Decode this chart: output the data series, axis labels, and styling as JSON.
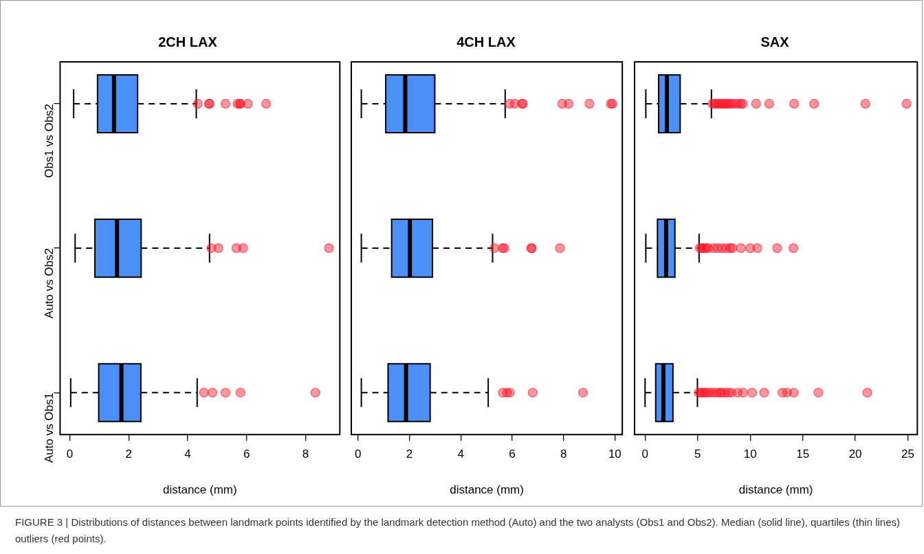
{
  "chart_data": [
    {
      "type": "box",
      "orientation": "horizontal",
      "title": "2CH LAX",
      "xlabel": "distance (mm)",
      "categories": [
        "Obs1 vs Obs2",
        "Auto vs Obs2",
        "Auto vs Obs1"
      ],
      "xlim": [
        -0.33,
        9.16
      ],
      "xticks": [
        0,
        2,
        4,
        6,
        8
      ],
      "grid": false,
      "legend": false,
      "series": [
        {
          "color": "#4a90f8",
          "boxes": [
            {
              "low": 0.13,
              "q1": 0.94,
              "median": 1.5,
              "q3": 2.3,
              "high": 4.29,
              "outliers": [
                4.34,
                4.72,
                4.74,
                5.28,
                5.69,
                5.77,
                5.79,
                6.04,
                6.66
              ]
            },
            {
              "low": 0.18,
              "q1": 0.85,
              "median": 1.6,
              "q3": 2.42,
              "high": 4.74,
              "outliers": [
                4.8,
                5.04,
                5.65,
                5.88,
                8.79
              ]
            },
            {
              "low": 0.03,
              "q1": 0.98,
              "median": 1.75,
              "q3": 2.41,
              "high": 4.32,
              "outliers": [
                4.55,
                4.84,
                5.28,
                5.79,
                8.33
              ]
            }
          ]
        }
      ],
      "annotations": [
        "FIGURE 3 | Distributions of distances between landmark points identified by the landmark detection method (Auto) and the two analysts (Obs1 and Obs2). Median (solid line), quartiles (thin lines) outliers (red points)."
      ]
    },
    {
      "type": "box",
      "orientation": "horizontal",
      "title": "4CH LAX",
      "xlabel": "distance (mm)",
      "categories": [
        null,
        null,
        null
      ],
      "xlim": [
        -0.26,
        10.29
      ],
      "xticks": [
        0,
        2,
        4,
        6,
        8,
        10
      ],
      "grid": false,
      "legend": false,
      "tick_labels": "x",
      "series": [
        {
          "color": "#4a90f8",
          "boxes": [
            {
              "low": 0.13,
              "q1": 1.08,
              "median": 1.84,
              "q3": 2.99,
              "high": 5.73,
              "outliers": [
                5.9,
                6.1,
                6.38,
                6.42,
                7.95,
                8.2,
                9.01,
                9.84,
                9.91
              ]
            },
            {
              "low": 0.13,
              "q1": 1.31,
              "median": 2.02,
              "q3": 2.9,
              "high": 5.24,
              "outliers": [
                5.31,
                5.63,
                5.7,
                6.74,
                6.77,
                7.86
              ]
            },
            {
              "low": 0.13,
              "q1": 1.17,
              "median": 1.87,
              "q3": 2.81,
              "high": 5.07,
              "outliers": [
                5.64,
                5.8,
                5.91,
                6.8,
                8.76
              ]
            }
          ]
        }
      ]
    },
    {
      "type": "box",
      "orientation": "horizontal",
      "title": "SAX",
      "xlabel": "distance (mm)",
      "categories": [
        null,
        null,
        null
      ],
      "xlim": [
        -1.0,
        25.9
      ],
      "xticks": [
        0,
        5,
        10,
        15,
        20,
        25
      ],
      "grid": false,
      "legend": false,
      "tick_labels": "x",
      "series": [
        {
          "color": "#4a90f8",
          "boxes": [
            {
              "low": 0.07,
              "q1": 1.29,
              "median": 2.07,
              "q3": 3.34,
              "high": 6.31,
              "outliers": [
                6.4,
                6.6,
                6.8,
                7.0,
                7.2,
                7.4,
                7.6,
                7.8,
                8.0,
                8.2,
                8.5,
                8.8,
                9.1,
                9.3,
                10.56,
                11.81,
                14.18,
                16.08,
                20.96,
                24.88
              ]
            },
            {
              "low": 0.07,
              "q1": 1.18,
              "median": 2.0,
              "q3": 2.84,
              "high": 5.14,
              "outliers": [
                5.2,
                5.4,
                5.6,
                5.8,
                6.0,
                6.5,
                6.9,
                7.3,
                7.7,
                8.1,
                8.3,
                9.11,
                10.0,
                10.68,
                12.56,
                14.11
              ]
            },
            {
              "low": 0.0,
              "q1": 1.01,
              "median": 1.74,
              "q3": 2.65,
              "high": 4.98,
              "outliers": [
                5.1,
                5.3,
                5.5,
                5.7,
                5.9,
                6.2,
                6.5,
                6.8,
                7.1,
                7.3,
                7.6,
                7.9,
                8.2,
                8.8,
                9.32,
                10.18,
                11.33,
                13.07,
                13.5,
                14.15,
                16.48,
                21.14
              ]
            }
          ]
        }
      ]
    }
  ]
}
